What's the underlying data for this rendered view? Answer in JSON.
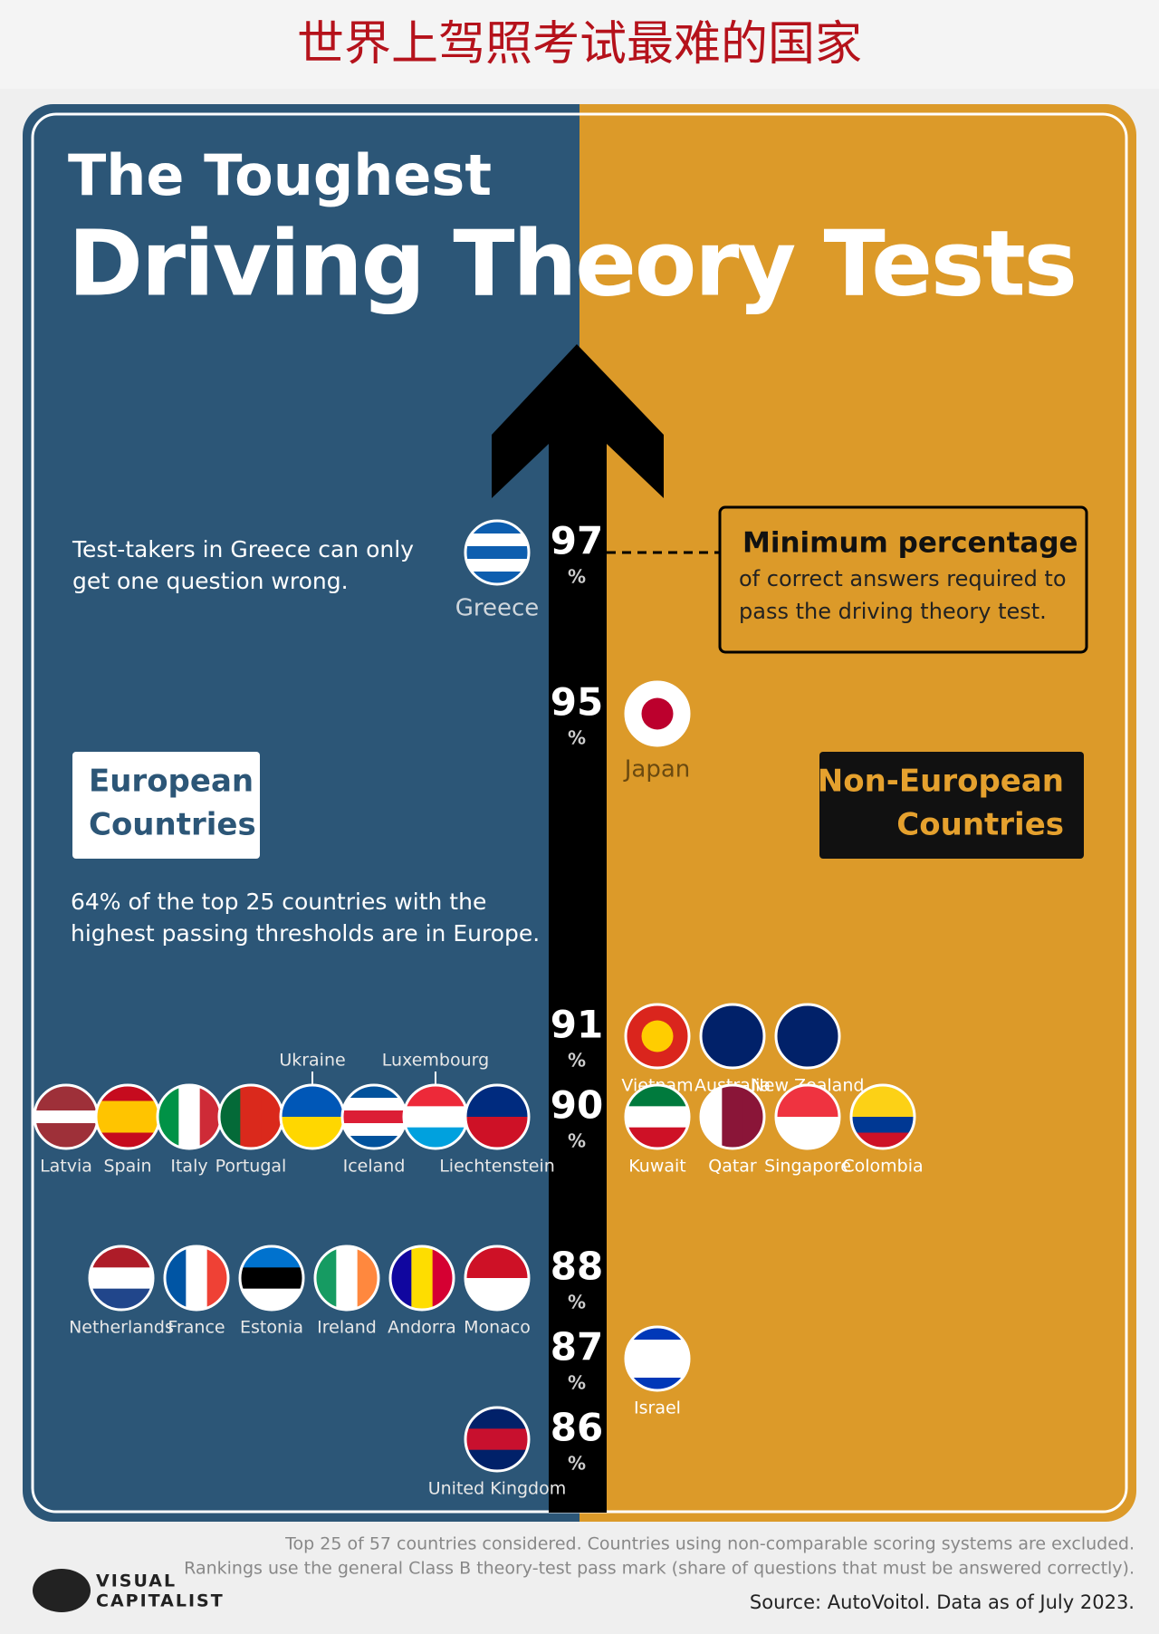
{
  "header": {
    "title": "世界上驾照考试最难的国家"
  },
  "title": {
    "line1": "The Toughest",
    "line2": "Driving Theory Tests"
  },
  "greece_note": [
    "Test-takers in Greece can only",
    "get one question wrong."
  ],
  "legend": {
    "title": "Minimum percentage",
    "lines": [
      "of correct answers required to",
      "pass the driving theory test."
    ]
  },
  "groups": {
    "european": [
      "European",
      "Countries"
    ],
    "non_european": [
      "Non-European",
      "Countries"
    ]
  },
  "europe_note": [
    "64% of the top 25 countries with the",
    "highest passing thresholds are in Europe."
  ],
  "percent_sign": "%",
  "levels": [
    {
      "value": 97,
      "european": [
        {
          "name": "Greece",
          "dir": "h",
          "stripes": [
            "#0d5eaf",
            "#ffffff",
            "#0d5eaf",
            "#ffffff",
            "#0d5eaf"
          ]
        }
      ],
      "non_european": []
    },
    {
      "value": 95,
      "european": [],
      "non_european": [
        {
          "name": "Japan",
          "dir": "h",
          "stripes": [
            "#ffffff"
          ],
          "dot": "#bc002d"
        }
      ]
    },
    {
      "value": 91,
      "european": [],
      "non_european": [
        {
          "name": "Vietnam",
          "dir": "h",
          "stripes": [
            "#da251d"
          ],
          "dot": "#ffcd00"
        },
        {
          "name": "Australia",
          "dir": "h",
          "stripes": [
            "#012169"
          ]
        },
        {
          "name": "New Zealand",
          "dir": "h",
          "stripes": [
            "#012169"
          ]
        }
      ]
    },
    {
      "value": 90,
      "european": [
        {
          "name": "Latvia",
          "dir": "h",
          "stripes": [
            "#9e3039",
            "#9e3039",
            "#ffffff",
            "#9e3039",
            "#9e3039"
          ]
        },
        {
          "name": "Spain",
          "dir": "h",
          "stripes": [
            "#c60b1e",
            "#ffc400",
            "#ffc400",
            "#c60b1e"
          ]
        },
        {
          "name": "Italy",
          "dir": "v",
          "stripes": [
            "#009246",
            "#ffffff",
            "#ce2b37"
          ]
        },
        {
          "name": "Portugal",
          "dir": "v",
          "stripes": [
            "#046a38",
            "#da291c",
            "#da291c"
          ]
        },
        {
          "name": "Ukraine",
          "dir": "h",
          "stripes": [
            "#0057b7",
            "#ffd700"
          ]
        },
        {
          "name": "Iceland",
          "dir": "h",
          "stripes": [
            "#02529c",
            "#ffffff",
            "#dc1e35",
            "#ffffff",
            "#02529c"
          ]
        },
        {
          "name": "Luxembourg",
          "dir": "h",
          "stripes": [
            "#ed2939",
            "#ffffff",
            "#00a1de"
          ]
        },
        {
          "name": "Liechtenstein",
          "dir": "h",
          "stripes": [
            "#002b7f",
            "#ce1126"
          ]
        }
      ],
      "non_european": [
        {
          "name": "Kuwait",
          "dir": "h",
          "stripes": [
            "#007a3d",
            "#ffffff",
            "#ce1126"
          ]
        },
        {
          "name": "Qatar",
          "dir": "v",
          "stripes": [
            "#ffffff",
            "#8a1538",
            "#8a1538"
          ]
        },
        {
          "name": "Singapore",
          "dir": "h",
          "stripes": [
            "#ef3340",
            "#ffffff"
          ]
        },
        {
          "name": "Colombia",
          "dir": "h",
          "stripes": [
            "#fcd116",
            "#fcd116",
            "#003893",
            "#ce1126"
          ]
        }
      ]
    },
    {
      "value": 88,
      "european": [
        {
          "name": "Netherlands",
          "dir": "h",
          "stripes": [
            "#ae1c28",
            "#ffffff",
            "#21468b"
          ]
        },
        {
          "name": "France",
          "dir": "v",
          "stripes": [
            "#0055a4",
            "#ffffff",
            "#ef4135"
          ]
        },
        {
          "name": "Estonia",
          "dir": "h",
          "stripes": [
            "#0072ce",
            "#000000",
            "#ffffff"
          ]
        },
        {
          "name": "Ireland",
          "dir": "v",
          "stripes": [
            "#169b62",
            "#ffffff",
            "#ff883e"
          ]
        },
        {
          "name": "Andorra",
          "dir": "v",
          "stripes": [
            "#10069f",
            "#fedd00",
            "#d50032"
          ]
        },
        {
          "name": "Monaco",
          "dir": "h",
          "stripes": [
            "#ce1126",
            "#ffffff"
          ]
        }
      ],
      "non_european": []
    },
    {
      "value": 87,
      "european": [],
      "non_european": [
        {
          "name": "Israel",
          "dir": "h",
          "stripes": [
            "#0038b8",
            "#ffffff",
            "#ffffff",
            "#ffffff",
            "#0038b8"
          ]
        }
      ]
    },
    {
      "value": 86,
      "european": [
        {
          "name": "United Kingdom",
          "dir": "h",
          "stripes": [
            "#012169",
            "#c8102e",
            "#012169"
          ]
        }
      ],
      "non_european": []
    }
  ],
  "footer": {
    "notes": [
      "Top 25 of 57 countries considered. Countries using non-comparable scoring systems are excluded.",
      "Rankings use the general Class B theory-test pass mark (share of questions that must be answered correctly)."
    ],
    "source": "Source: AutoVoitol. Data as of July 2023.",
    "logo": [
      "VISUAL",
      "CAPITALIST"
    ]
  }
}
